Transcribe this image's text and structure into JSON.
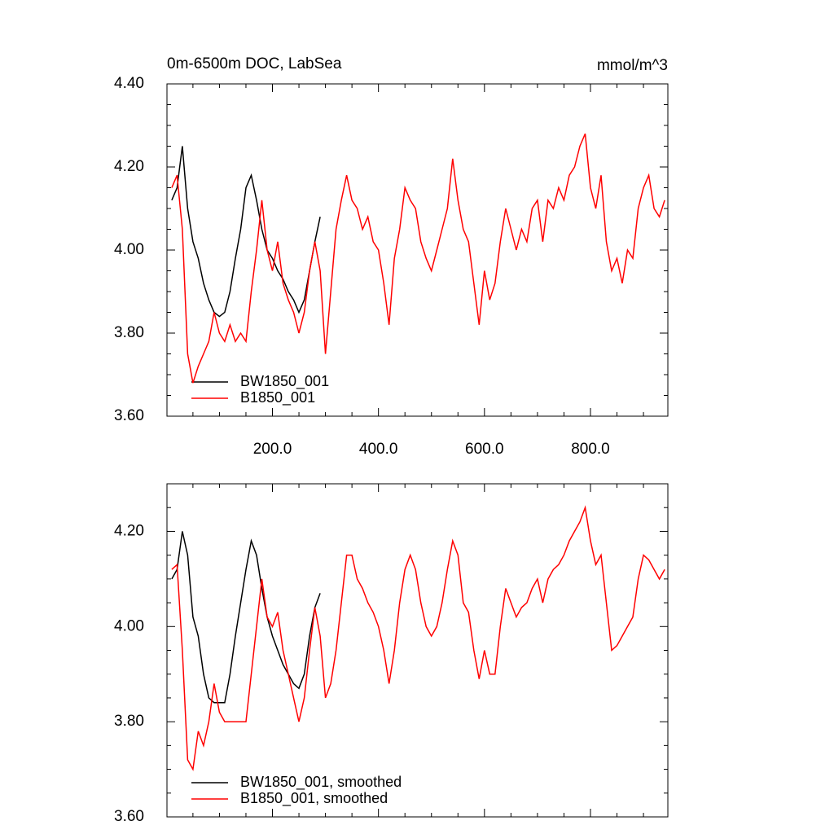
{
  "chart_data": [
    {
      "type": "line",
      "title": "0m-6500m DOC, LabSea",
      "units": "mmol/m^3",
      "legend": "lower left",
      "xlim": [
        1,
        946
      ],
      "ylim": [
        3.6,
        4.4
      ],
      "xticks": [
        {
          "value": 200,
          "label": "200.0"
        },
        {
          "value": 400,
          "label": "400.0"
        },
        {
          "value": 600,
          "label": "600.0"
        },
        {
          "value": 800,
          "label": "800.0"
        }
      ],
      "yticks": [
        {
          "value": 3.6,
          "label": "3.60"
        },
        {
          "value": 3.8,
          "label": "3.80"
        },
        {
          "value": 4.0,
          "label": "4.00"
        },
        {
          "value": 4.2,
          "label": "4.20"
        },
        {
          "value": 4.4,
          "label": "4.40"
        }
      ],
      "series": [
        {
          "name": "BW1850_001",
          "color": "#000000",
          "x": [
            10,
            20,
            30,
            40,
            50,
            60,
            70,
            80,
            90,
            100,
            110,
            120,
            130,
            140,
            150,
            160,
            170,
            180,
            190,
            200,
            210,
            220,
            230,
            240,
            250,
            260,
            270,
            280,
            290
          ],
          "values": [
            4.12,
            4.15,
            4.25,
            4.1,
            4.02,
            3.98,
            3.92,
            3.88,
            3.85,
            3.84,
            3.85,
            3.9,
            3.98,
            4.05,
            4.15,
            4.18,
            4.12,
            4.05,
            4.0,
            3.98,
            3.95,
            3.93,
            3.9,
            3.88,
            3.85,
            3.88,
            3.95,
            4.02,
            4.08
          ]
        },
        {
          "name": "B1850_001",
          "color": "#ff0000",
          "x": [
            10,
            20,
            30,
            40,
            50,
            60,
            70,
            80,
            90,
            100,
            110,
            120,
            130,
            140,
            150,
            160,
            170,
            180,
            190,
            200,
            210,
            220,
            230,
            240,
            250,
            260,
            270,
            280,
            290,
            300,
            310,
            320,
            330,
            340,
            350,
            360,
            370,
            380,
            390,
            400,
            410,
            420,
            430,
            440,
            450,
            460,
            470,
            480,
            490,
            500,
            510,
            520,
            530,
            540,
            550,
            560,
            570,
            580,
            590,
            600,
            610,
            620,
            630,
            640,
            650,
            660,
            670,
            680,
            690,
            700,
            710,
            720,
            730,
            740,
            750,
            760,
            770,
            780,
            790,
            800,
            810,
            820,
            830,
            840,
            850,
            860,
            870,
            880,
            890,
            900,
            910,
            920,
            930,
            940
          ],
          "values": [
            4.15,
            4.18,
            4.05,
            3.75,
            3.68,
            3.72,
            3.75,
            3.78,
            3.85,
            3.8,
            3.78,
            3.82,
            3.78,
            3.8,
            3.78,
            3.9,
            4.0,
            4.12,
            4.0,
            3.95,
            4.02,
            3.92,
            3.88,
            3.85,
            3.8,
            3.85,
            3.95,
            4.02,
            3.95,
            3.75,
            3.9,
            4.05,
            4.12,
            4.18,
            4.12,
            4.1,
            4.05,
            4.08,
            4.02,
            4.0,
            3.92,
            3.82,
            3.98,
            4.05,
            4.15,
            4.12,
            4.1,
            4.02,
            3.98,
            3.95,
            4.0,
            4.05,
            4.1,
            4.22,
            4.12,
            4.05,
            4.02,
            3.92,
            3.82,
            3.95,
            3.88,
            3.92,
            4.02,
            4.1,
            4.05,
            4.0,
            4.05,
            4.02,
            4.1,
            4.12,
            4.02,
            4.12,
            4.1,
            4.15,
            4.12,
            4.18,
            4.2,
            4.25,
            4.28,
            4.15,
            4.1,
            4.18,
            4.02,
            3.95,
            3.98,
            3.92,
            4.0,
            3.98,
            4.1,
            4.15,
            4.18,
            4.1,
            4.08,
            4.12
          ]
        }
      ]
    },
    {
      "type": "line",
      "legend": "lower left",
      "xlim": [
        1,
        946
      ],
      "ylim": [
        3.6,
        4.3
      ],
      "xticks": [
        200,
        400,
        600,
        800
      ],
      "yticks": [
        {
          "value": 3.6,
          "label": "3.60"
        },
        {
          "value": 3.8,
          "label": "3.80"
        },
        {
          "value": 4.0,
          "label": "4.00"
        },
        {
          "value": 4.2,
          "label": "4.20"
        }
      ],
      "series": [
        {
          "name": "BW1850_001, smoothed",
          "color": "#000000",
          "x": [
            10,
            20,
            30,
            40,
            50,
            60,
            70,
            80,
            90,
            100,
            110,
            120,
            130,
            140,
            150,
            160,
            170,
            180,
            190,
            200,
            210,
            220,
            230,
            240,
            250,
            260,
            270,
            280,
            290
          ],
          "values": [
            4.1,
            4.12,
            4.2,
            4.15,
            4.02,
            3.98,
            3.9,
            3.85,
            3.84,
            3.84,
            3.84,
            3.9,
            3.98,
            4.05,
            4.12,
            4.18,
            4.15,
            4.08,
            4.02,
            3.98,
            3.95,
            3.92,
            3.9,
            3.88,
            3.87,
            3.9,
            3.98,
            4.04,
            4.07
          ]
        },
        {
          "name": "B1850_001, smoothed",
          "color": "#ff0000",
          "x": [
            10,
            20,
            30,
            40,
            50,
            60,
            70,
            80,
            90,
            100,
            110,
            120,
            130,
            140,
            150,
            160,
            170,
            180,
            190,
            200,
            210,
            220,
            230,
            240,
            250,
            260,
            270,
            280,
            290,
            300,
            310,
            320,
            330,
            340,
            350,
            360,
            370,
            380,
            390,
            400,
            410,
            420,
            430,
            440,
            450,
            460,
            470,
            480,
            490,
            500,
            510,
            520,
            530,
            540,
            550,
            560,
            570,
            580,
            590,
            600,
            610,
            620,
            630,
            640,
            650,
            660,
            670,
            680,
            690,
            700,
            710,
            720,
            730,
            740,
            750,
            760,
            770,
            780,
            790,
            800,
            810,
            820,
            830,
            840,
            850,
            860,
            870,
            880,
            890,
            900,
            910,
            920,
            930,
            940
          ],
          "values": [
            4.12,
            4.13,
            3.95,
            3.72,
            3.7,
            3.78,
            3.75,
            3.8,
            3.88,
            3.82,
            3.8,
            3.8,
            3.8,
            3.8,
            3.8,
            3.9,
            4.0,
            4.1,
            4.02,
            4.0,
            4.03,
            3.95,
            3.9,
            3.85,
            3.8,
            3.85,
            3.95,
            4.04,
            3.98,
            3.85,
            3.88,
            3.95,
            4.05,
            4.15,
            4.15,
            4.1,
            4.08,
            4.05,
            4.03,
            4.0,
            3.95,
            3.88,
            3.95,
            4.05,
            4.12,
            4.15,
            4.12,
            4.05,
            4.0,
            3.98,
            4.0,
            4.05,
            4.12,
            4.18,
            4.15,
            4.05,
            4.03,
            3.95,
            3.89,
            3.95,
            3.9,
            3.9,
            4.0,
            4.08,
            4.05,
            4.02,
            4.04,
            4.05,
            4.08,
            4.1,
            4.05,
            4.1,
            4.12,
            4.13,
            4.15,
            4.18,
            4.2,
            4.22,
            4.25,
            4.18,
            4.13,
            4.15,
            4.05,
            3.95,
            3.96,
            3.98,
            4.0,
            4.02,
            4.1,
            4.15,
            4.14,
            4.12,
            4.1,
            4.12
          ]
        }
      ]
    }
  ]
}
